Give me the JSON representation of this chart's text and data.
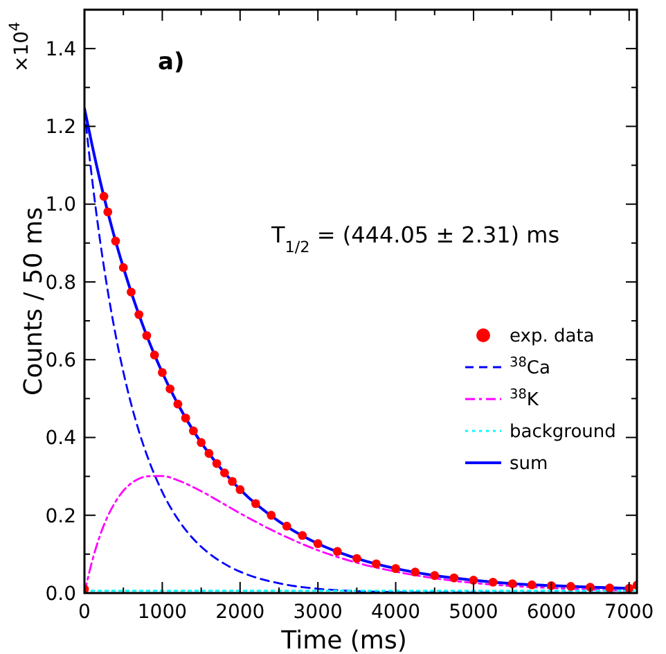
{
  "chart_data": {
    "type": "line",
    "xlabel": "Time (ms)",
    "ylabel": "Counts / 50 ms",
    "annotations": [
      "a)",
      "T$_{1/2}$ =  (444.05 ± 2.31) ms",
      "×10$^{4}$"
    ],
    "xlim": [
      0,
      7100
    ],
    "ylim": [
      0,
      1.5
    ],
    "xticks": [
      0,
      {
        "value": 500,
        "label": null
      },
      1000,
      {
        "value": 1500,
        "label": null
      },
      2000,
      {
        "value": 2500,
        "label": null
      },
      3000,
      {
        "value": 3500,
        "label": null
      },
      4000,
      {
        "value": 4500,
        "label": null
      },
      5000,
      {
        "value": 5500,
        "label": null
      },
      6000,
      {
        "value": 6500,
        "label": null
      },
      7000
    ],
    "yticks": [
      {
        "value": 0,
        "label": "0.0"
      },
      {
        "value": 0.1,
        "label": null
      },
      0.2,
      {
        "value": 0.3,
        "label": null
      },
      0.4,
      {
        "value": 0.5,
        "label": null
      },
      0.6,
      {
        "value": 0.7,
        "label": null
      },
      0.8,
      {
        "value": 0.9,
        "label": null
      },
      {
        "value": 1,
        "label": "1.0"
      },
      {
        "value": 1.1,
        "label": null
      },
      1.2,
      {
        "value": 1.3,
        "label": null
      },
      1.4
    ],
    "grid": false,
    "legend": "right",
    "series": [
      {
        "name": "exp. data",
        "type": "scatter",
        "marker": "circle",
        "color": "#ff0000",
        "x": [
          0,
          250,
          300,
          400,
          500,
          600,
          700,
          800,
          900,
          1000,
          1100,
          1200,
          1300,
          1400,
          1500,
          1600,
          1700,
          1800,
          1900,
          2000,
          2200,
          2400,
          2600,
          2800,
          3000,
          3250,
          3500,
          3750,
          4000,
          4250,
          4500,
          4750,
          5000,
          5250,
          5500,
          5750,
          6000,
          6250,
          6500,
          6750,
          7000,
          7100
        ],
        "values": [
          0.01,
          1.02,
          0.98,
          0.905,
          0.837,
          0.774,
          0.716,
          0.662,
          0.612,
          0.567,
          0.525,
          0.486,
          0.45,
          0.417,
          0.387,
          0.359,
          0.333,
          0.309,
          0.287,
          0.266,
          0.23,
          0.2,
          0.172,
          0.148,
          0.127,
          0.107,
          0.089,
          0.075,
          0.063,
          0.054,
          0.045,
          0.039,
          0.033,
          0.028,
          0.024,
          0.021,
          0.019,
          0.017,
          0.015,
          0.013,
          0.012,
          0.02
        ]
      },
      {
        "name": "$^{38}$Ca",
        "line_style": "dashed",
        "color": "#0000ff",
        "x": [
          0,
          100,
          200,
          300,
          400,
          500,
          600,
          700,
          800,
          1000,
          1200,
          1400,
          1600,
          1800,
          2000,
          2500,
          3000,
          3500,
          4000,
          4500,
          5000,
          5500,
          6000,
          6500,
          7000
        ],
        "values": [
          1.24,
          1.061,
          0.907,
          0.776,
          0.664,
          0.568,
          0.486,
          0.416,
          0.356,
          0.26,
          0.19,
          0.139,
          0.102,
          0.075,
          0.055,
          0.025,
          0.011,
          0.005,
          0.002,
          0.001,
          0.001,
          0,
          0,
          0,
          0
        ]
      },
      {
        "name": "$^{38}$K",
        "line_style": "dashdot",
        "color": "#ff00ff",
        "x": [
          0,
          100,
          200,
          300,
          400,
          500,
          600,
          700,
          800,
          1000,
          1200,
          1400,
          1600,
          1800,
          2000,
          2500,
          3000,
          3500,
          4000,
          4500,
          5000,
          5500,
          6000,
          6500,
          7000
        ],
        "values": [
          0,
          0.083,
          0.148,
          0.198,
          0.235,
          0.263,
          0.282,
          0.294,
          0.3,
          0.301,
          0.29,
          0.272,
          0.251,
          0.228,
          0.205,
          0.153,
          0.11,
          0.078,
          0.055,
          0.038,
          0.026,
          0.018,
          0.013,
          0.009,
          0.006
        ]
      },
      {
        "name": "background",
        "line_style": "dotted",
        "color": "#00ffff",
        "x": [
          0,
          7100
        ],
        "values": [
          0.006,
          0.006
        ]
      },
      {
        "name": "sum",
        "line_style": "solid",
        "color": "#0000ff",
        "x": [
          0,
          100,
          200,
          300,
          400,
          500,
          600,
          700,
          800,
          1000,
          1200,
          1400,
          1600,
          1800,
          2000,
          2500,
          3000,
          3500,
          4000,
          4500,
          5000,
          5500,
          6000,
          6500,
          7000
        ],
        "values": [
          1.246,
          1.15,
          1.061,
          0.98,
          0.905,
          0.837,
          0.774,
          0.716,
          0.662,
          0.567,
          0.486,
          0.417,
          0.359,
          0.309,
          0.266,
          0.184,
          0.127,
          0.089,
          0.063,
          0.045,
          0.033,
          0.024,
          0.019,
          0.015,
          0.012
        ]
      }
    ]
  }
}
